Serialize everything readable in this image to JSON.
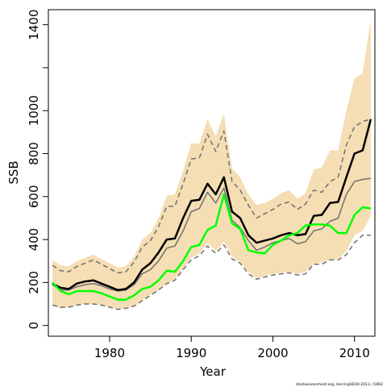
{
  "chart_data": {
    "type": "line",
    "title": "",
    "xlabel": "Year",
    "ylabel": "SSB",
    "xlim": [
      1972.5,
      2012.5
    ],
    "ylim": [
      -50,
      1470
    ],
    "x_ticks": [
      1980,
      1990,
      2000,
      2010
    ],
    "y_ticks": [
      0,
      200,
      400,
      600,
      800,
      1000,
      1200,
      1400
    ],
    "y_tick_labels": [
      "0",
      "200",
      "400",
      "600",
      "800",
      "1000",
      "",
      "1400"
    ],
    "grid": false,
    "legend": "none",
    "credit": "stockassessment.org, HerringSD30-2013, r1862",
    "colors": {
      "band": "#f5deb3",
      "estimate": "#000000",
      "bound": "#707070",
      "median": "#707070",
      "observed": "#00ff00"
    },
    "x": [
      1973,
      1974,
      1975,
      1976,
      1977,
      1978,
      1979,
      1980,
      1981,
      1982,
      1983,
      1984,
      1985,
      1986,
      1987,
      1988,
      1989,
      1990,
      1991,
      1992,
      1993,
      1994,
      1995,
      1996,
      1997,
      1998,
      1999,
      2000,
      2001,
      2002,
      2003,
      2004,
      2005,
      2006,
      2007,
      2008,
      2009,
      2010,
      2011,
      2012
    ],
    "series": [
      {
        "role": "band_upper",
        "values": [
          305,
          280,
          275,
          300,
          315,
          330,
          310,
          290,
          270,
          275,
          320,
          400,
          430,
          500,
          605,
          610,
          720,
          850,
          845,
          960,
          880,
          985,
          730,
          690,
          610,
          560,
          570,
          590,
          615,
          630,
          590,
          615,
          725,
          735,
          815,
          815,
          1000,
          1150,
          1175,
          1425
        ]
      },
      {
        "role": "band_lower",
        "values": [
          90,
          80,
          85,
          95,
          100,
          100,
          95,
          85,
          75,
          80,
          90,
          115,
          145,
          165,
          195,
          215,
          265,
          315,
          335,
          385,
          345,
          390,
          320,
          295,
          250,
          220,
          230,
          240,
          245,
          250,
          240,
          250,
          285,
          295,
          305,
          310,
          345,
          420,
          440,
          510
        ]
      },
      {
        "role": "upper_bound",
        "values": [
          280,
          255,
          250,
          275,
          290,
          305,
          285,
          265,
          245,
          250,
          295,
          365,
          395,
          460,
          555,
          555,
          660,
          775,
          780,
          890,
          810,
          905,
          670,
          630,
          560,
          500,
          520,
          540,
          565,
          575,
          540,
          565,
          630,
          620,
          670,
          690,
          840,
          925,
          950,
          960
        ]
      },
      {
        "role": "lower_bound",
        "values": [
          95,
          85,
          85,
          95,
          100,
          100,
          95,
          85,
          75,
          80,
          90,
          115,
          140,
          165,
          195,
          210,
          260,
          305,
          325,
          370,
          335,
          375,
          310,
          290,
          240,
          215,
          225,
          235,
          240,
          245,
          235,
          240,
          285,
          285,
          305,
          305,
          330,
          385,
          420,
          420
        ]
      },
      {
        "role": "median",
        "values": [
          190,
          165,
          165,
          180,
          190,
          195,
          185,
          170,
          160,
          165,
          190,
          240,
          260,
          300,
          360,
          370,
          440,
          530,
          545,
          620,
          570,
          640,
          490,
          455,
          395,
          350,
          365,
          385,
          395,
          405,
          380,
          390,
          440,
          450,
          485,
          500,
          610,
          670,
          680,
          685
        ]
      },
      {
        "role": "estimate",
        "values": [
          195,
          175,
          170,
          195,
          205,
          210,
          195,
          180,
          165,
          170,
          200,
          260,
          290,
          340,
          400,
          405,
          500,
          580,
          585,
          660,
          610,
          690,
          530,
          500,
          420,
          385,
          395,
          405,
          420,
          430,
          420,
          425,
          510,
          515,
          570,
          575,
          690,
          800,
          815,
          960
        ]
      },
      {
        "role": "observed",
        "values": [
          200,
          160,
          145,
          160,
          160,
          160,
          150,
          135,
          120,
          120,
          140,
          170,
          180,
          210,
          255,
          250,
          300,
          365,
          375,
          445,
          465,
          610,
          475,
          450,
          350,
          340,
          335,
          375,
          395,
          420,
          430,
          465,
          470,
          470,
          465,
          430,
          430,
          515,
          550,
          545
        ]
      }
    ]
  }
}
